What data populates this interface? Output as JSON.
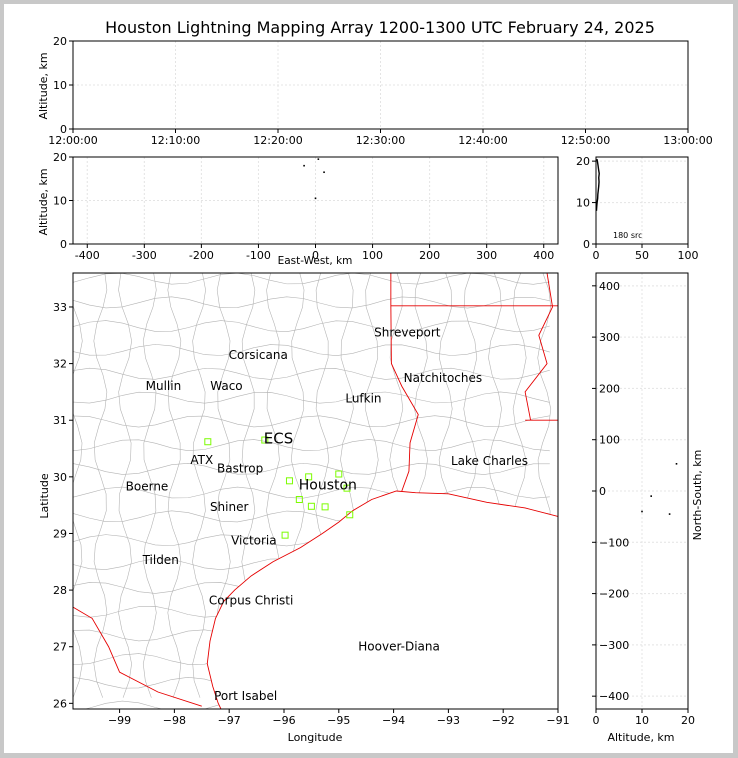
{
  "chart_data": [
    {
      "type": "scatter",
      "panel": "altitude-time",
      "title": "Houston Lightning Mapping Array 1200-1300 UTC February 24, 2025",
      "ylabel": "Altitude, km",
      "xlim": [
        "12:00:00",
        "13:00:00"
      ],
      "ylim": [
        0,
        20
      ],
      "x_tick_labels": [
        "12:00:00",
        "12:10:00",
        "12:20:00",
        "12:30:00",
        "12:40:00",
        "12:50:00",
        "13:00:00"
      ],
      "y_ticks": [
        0,
        10,
        20
      ],
      "grid": true
    },
    {
      "type": "scatter",
      "panel": "east-west-altitude",
      "xlabel": "East-West, km",
      "ylabel": "Altitude, km",
      "xlim": [
        -425,
        425
      ],
      "ylim": [
        0,
        20
      ],
      "x_ticks": [
        -400,
        -300,
        -200,
        -100,
        0,
        100,
        200,
        300,
        400
      ],
      "y_ticks": [
        0,
        10,
        20
      ],
      "grid": true,
      "points": [
        [
          -20,
          18
        ],
        [
          15,
          16.5
        ],
        [
          0,
          10.5
        ],
        [
          5,
          19.5
        ]
      ]
    },
    {
      "type": "histogram",
      "panel": "altitude-histogram",
      "annotation": "180 src",
      "xlim": [
        0,
        100
      ],
      "ylim": [
        0,
        21
      ],
      "x_ticks": [
        0,
        50,
        100
      ],
      "y_ticks": [
        0,
        10,
        20
      ],
      "grid": true,
      "profile": [
        [
          0.5,
          8
        ],
        [
          0.8,
          9
        ],
        [
          1.2,
          10
        ],
        [
          1.8,
          11
        ],
        [
          2.0,
          12
        ],
        [
          2.5,
          13
        ],
        [
          3.0,
          14
        ],
        [
          3.3,
          15
        ],
        [
          3.0,
          16
        ],
        [
          3.5,
          17
        ],
        [
          2.8,
          18
        ],
        [
          2.2,
          19
        ],
        [
          1.5,
          20
        ],
        [
          1.0,
          20.5
        ]
      ]
    },
    {
      "type": "map",
      "panel": "plan-view",
      "xlabel": "Longitude",
      "ylabel": "Latitude",
      "xlim": [
        -99.85,
        -91.0
      ],
      "ylim": [
        25.9,
        33.6
      ],
      "x_ticks": [
        -99,
        -98,
        -97,
        -96,
        -95,
        -94,
        -93,
        -92,
        -91
      ],
      "y_ticks": [
        26,
        27,
        28,
        29,
        30,
        31,
        32,
        33
      ],
      "cities": [
        {
          "name": "Shreveport",
          "lon": -93.75,
          "lat": 32.55,
          "color": "#000000"
        },
        {
          "name": "Corsicana",
          "lon": -96.47,
          "lat": 32.15,
          "color": "#000000"
        },
        {
          "name": "Natchitoches",
          "lon": -93.1,
          "lat": 31.75,
          "color": "#000000"
        },
        {
          "name": "Mullin",
          "lon": -98.2,
          "lat": 31.6,
          "color": "#ff8c32"
        },
        {
          "name": "Waco",
          "lon": -97.05,
          "lat": 31.6,
          "color": "#000000"
        },
        {
          "name": "Lufkin",
          "lon": -94.55,
          "lat": 31.38,
          "color": "#000000"
        },
        {
          "name": "ECS",
          "lon": -96.1,
          "lat": 30.66,
          "color": "#000000"
        },
        {
          "name": "ATX",
          "lon": -97.5,
          "lat": 30.3,
          "color": "#ff8c32"
        },
        {
          "name": "Lake Charles",
          "lon": -92.25,
          "lat": 30.28,
          "color": "#000000"
        },
        {
          "name": "Bastrop",
          "lon": -96.8,
          "lat": 30.15,
          "color": "#000000"
        },
        {
          "name": "Houston",
          "lon": -95.2,
          "lat": 29.85,
          "color": "#ffa500"
        },
        {
          "name": "Boerne",
          "lon": -98.5,
          "lat": 29.83,
          "color": "#000000"
        },
        {
          "name": "Shiner",
          "lon": -97.0,
          "lat": 29.47,
          "color": "#000000"
        },
        {
          "name": "Victoria",
          "lon": -96.55,
          "lat": 28.88,
          "color": "#000000"
        },
        {
          "name": "Tilden",
          "lon": -98.25,
          "lat": 28.53,
          "color": "#000000"
        },
        {
          "name": "Corpus Christi",
          "lon": -96.6,
          "lat": 27.82,
          "color": "#000000"
        },
        {
          "name": "Hoover-Diana",
          "lon": -93.9,
          "lat": 27.0,
          "color": "#0000cc"
        },
        {
          "name": "Port Isabel",
          "lon": -96.7,
          "lat": 26.13,
          "color": "#000000"
        }
      ],
      "stations": [
        {
          "lon": -97.39,
          "lat": 30.62
        },
        {
          "lon": -96.35,
          "lat": 30.65
        },
        {
          "lon": -95.9,
          "lat": 29.93
        },
        {
          "lon": -95.55,
          "lat": 30.0
        },
        {
          "lon": -95.0,
          "lat": 30.05
        },
        {
          "lon": -94.85,
          "lat": 29.8
        },
        {
          "lon": -95.72,
          "lat": 29.6
        },
        {
          "lon": -95.5,
          "lat": 29.48
        },
        {
          "lon": -95.25,
          "lat": 29.47
        },
        {
          "lon": -94.8,
          "lat": 29.33
        },
        {
          "lon": -95.98,
          "lat": 28.97
        }
      ]
    },
    {
      "type": "scatter",
      "panel": "altitude-north-south",
      "xlabel": "Altitude, km",
      "ylabel": "North-South, km",
      "xlim": [
        0,
        20
      ],
      "ylim": [
        -425,
        425
      ],
      "x_ticks": [
        0,
        10,
        20
      ],
      "y_ticks": [
        -400,
        -300,
        -200,
        -100,
        0,
        100,
        200,
        300,
        400
      ],
      "grid": true,
      "points": [
        [
          17.5,
          53
        ],
        [
          12,
          -10
        ],
        [
          10,
          -40
        ],
        [
          16,
          -45
        ]
      ]
    }
  ],
  "colors": {
    "station": "#7cfc00",
    "county_lines": "#b4b4b4",
    "state_lines": "#e60000",
    "coast": "#e60000",
    "grid": "#e4e4e4"
  }
}
